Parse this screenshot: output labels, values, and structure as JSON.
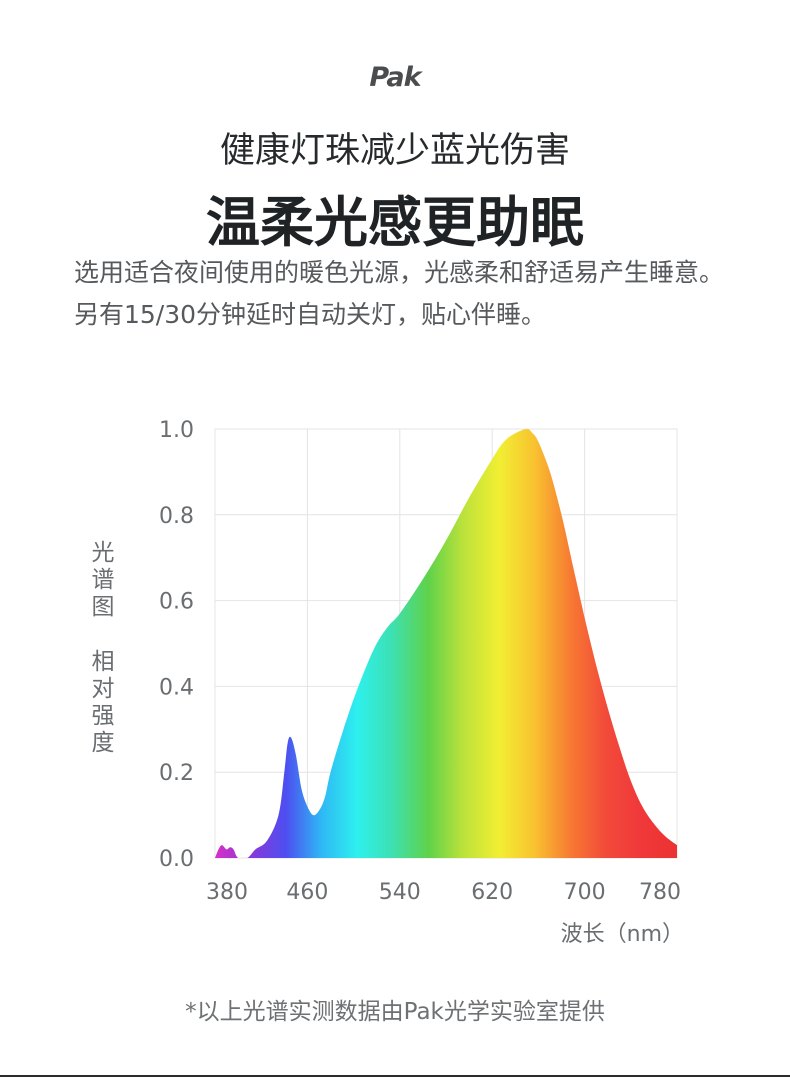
{
  "brand": {
    "logo_text": "Pak"
  },
  "header": {
    "subtitle": "健康灯珠减少蓝光伤害",
    "title": "温柔光感更助眠",
    "description": "选用适合夜间使用的暖色光源，光感柔和舒适易产生睡意。另有15/30分钟延时自动关灯，贴心伴睡。"
  },
  "footnote": "*以上光谱实测数据由Pak光学实验室提供",
  "chart_data": {
    "type": "area",
    "title": "",
    "ylabel_line1": "光谱图",
    "ylabel_line2": "相对强度",
    "xlabel": "波长（nm）",
    "xlim": [
      380,
      780
    ],
    "ylim": [
      0,
      1.0
    ],
    "x_ticks": [
      380,
      460,
      540,
      620,
      700,
      780
    ],
    "y_ticks": [
      "0.0",
      "0.2",
      "0.4",
      "0.6",
      "0.8",
      "1.0"
    ],
    "grid": true,
    "x": [
      380,
      383,
      386,
      390,
      393,
      396,
      400,
      408,
      415,
      425,
      435,
      440,
      443,
      446,
      450,
      455,
      460,
      465,
      470,
      475,
      480,
      490,
      500,
      510,
      520,
      530,
      540,
      560,
      580,
      600,
      620,
      630,
      640,
      650,
      655,
      660,
      670,
      680,
      690,
      700,
      710,
      720,
      730,
      740,
      750,
      760,
      770,
      780
    ],
    "y": [
      0.0,
      0.02,
      0.03,
      0.02,
      0.025,
      0.02,
      0.0,
      0.0,
      0.02,
      0.04,
      0.1,
      0.2,
      0.27,
      0.28,
      0.24,
      0.16,
      0.12,
      0.1,
      0.11,
      0.14,
      0.2,
      0.29,
      0.37,
      0.44,
      0.5,
      0.54,
      0.57,
      0.65,
      0.74,
      0.84,
      0.93,
      0.97,
      0.99,
      1.0,
      0.99,
      0.97,
      0.9,
      0.8,
      0.68,
      0.56,
      0.45,
      0.35,
      0.26,
      0.18,
      0.12,
      0.08,
      0.05,
      0.03
    ],
    "gradient_colors": [
      "#d82fc8",
      "#8a38d8",
      "#4d4ff0",
      "#2fb8f5",
      "#2ef0ee",
      "#3de0b0",
      "#5fd24a",
      "#bde23a",
      "#f2ee32",
      "#f8c230",
      "#f77a32",
      "#f24a3a",
      "#f0383a",
      "#ec3232"
    ]
  }
}
